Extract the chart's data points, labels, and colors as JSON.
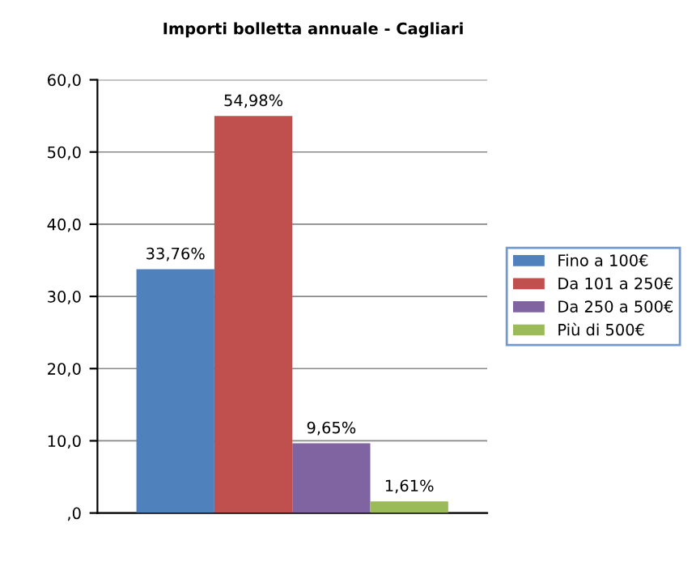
{
  "chart_data": {
    "type": "bar",
    "title": "Importi bolletta annuale - Cagliari",
    "categories": [
      null
    ],
    "series": [
      {
        "name": "Fino a 100€",
        "color": "#4f81bd",
        "values": [
          33.76
        ],
        "value_labels": [
          "33,76%"
        ]
      },
      {
        "name": "Da 101 a 250€",
        "color": "#c0504d",
        "values": [
          54.98
        ],
        "value_labels": [
          "54,98%"
        ]
      },
      {
        "name": "Da 250 a 500€",
        "color": "#8064a2",
        "values": [
          9.65
        ],
        "value_labels": [
          "9,65%"
        ]
      },
      {
        "name": "Più di 500€",
        "color": "#9bbb59",
        "values": [
          1.61
        ],
        "value_labels": [
          "1,61%"
        ]
      }
    ],
    "ylim": [
      0,
      60
    ],
    "yticks": [
      {
        "value": 0,
        "label": ",0"
      },
      {
        "value": 10,
        "label": "10,0"
      },
      {
        "value": 20,
        "label": "20,0"
      },
      {
        "value": 30,
        "label": "30,0"
      },
      {
        "value": 40,
        "label": "40,0"
      },
      {
        "value": 50,
        "label": "50,0"
      },
      {
        "value": 60,
        "label": "60,0"
      }
    ],
    "grid": "y",
    "legend": "right"
  }
}
